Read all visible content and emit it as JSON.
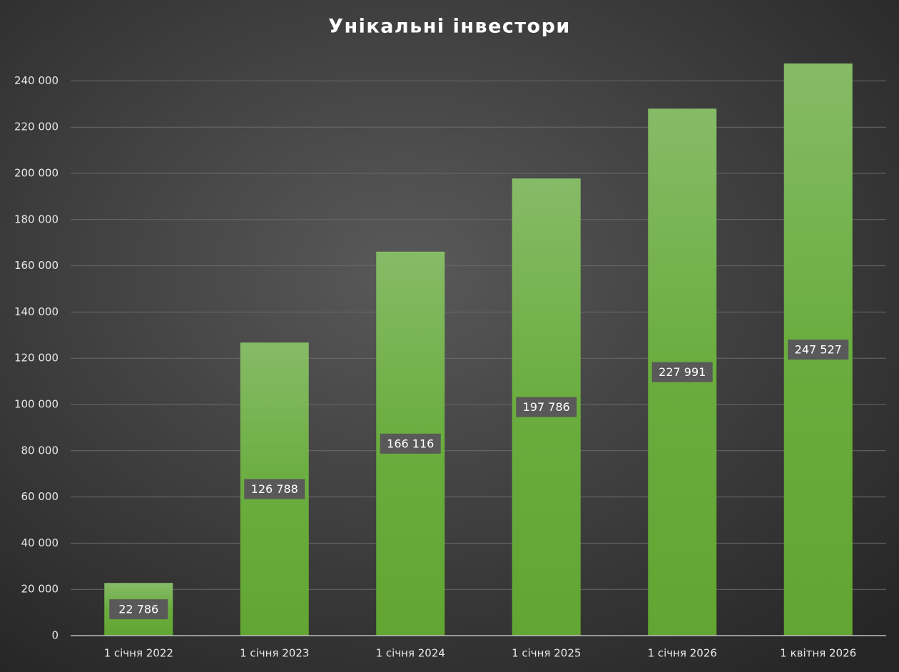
{
  "chart_data": {
    "type": "bar",
    "title": "Унікальні інвестори",
    "categories": [
      "1 січня 2022",
      "1 січня 2023",
      "1 січня 2024",
      "1 січня 2025",
      "1 січня 2026",
      "1 квітня 2026"
    ],
    "values": [
      22786,
      126788,
      166116,
      197786,
      227991,
      247527
    ],
    "value_labels": [
      "22 786",
      "126 788",
      "166 116",
      "197 786",
      "227 991",
      "247 527"
    ],
    "color": "#6aad3e",
    "ylim": [
      0,
      250000
    ],
    "yticks": [
      0,
      {
        "value": 20000,
        "label": "20 000"
      },
      {
        "value": 40000,
        "label": "40 000"
      },
      {
        "value": 60000,
        "label": "60 000"
      },
      {
        "value": 80000,
        "label": "80 000"
      },
      {
        "value": 100000,
        "label": "100 000"
      },
      {
        "value": 120000,
        "label": "120 000"
      },
      {
        "value": 140000,
        "label": "140 000"
      },
      {
        "value": 160000,
        "label": "160 000"
      },
      {
        "value": 180000,
        "label": "180 000"
      },
      {
        "value": 200000,
        "label": "200 000"
      },
      {
        "value": 220000,
        "label": "220 000"
      },
      {
        "value": 240000,
        "label": "240 000"
      }
    ],
    "grid": true
  }
}
